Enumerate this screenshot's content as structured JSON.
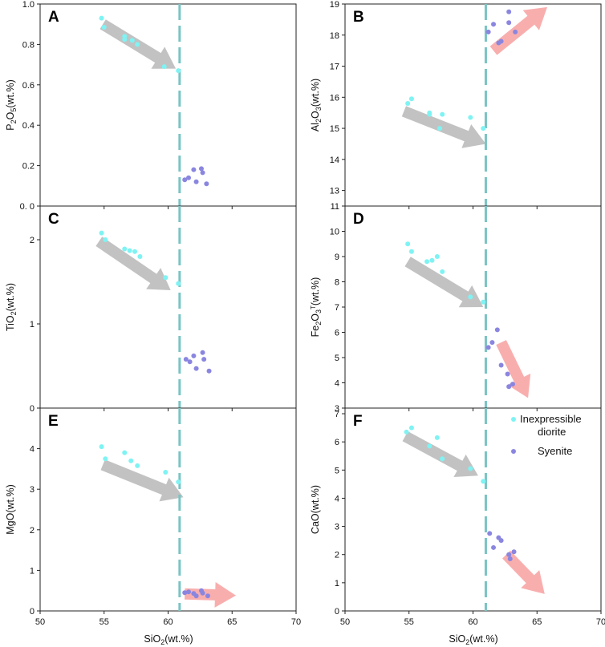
{
  "figure": {
    "xlabel_main": "SiO",
    "xlabel_sub": "2",
    "xlabel_tail": "(wt.%)"
  },
  "legend": {
    "items": [
      {
        "label_line1": "Inexpressible",
        "label_line2": "diorite",
        "color": "#7ff3f3"
      },
      {
        "label_line1": "Syenite",
        "label_line2": "",
        "color": "#8a86e0"
      }
    ]
  },
  "colors": {
    "diorite": "#7ff3f3",
    "diorite_edge": "#33c7c7",
    "syenite": "#8a86e0",
    "syenite_dark": "#5a4fb0",
    "divider": "#7ac4c4",
    "grey_arrow": "#bdbdbd",
    "pink_arrow": "#f8a7a7"
  },
  "chart_data": [
    {
      "panel": "A",
      "type": "scatter",
      "ylabel": [
        {
          "t": "P",
          "s": ""
        },
        {
          "t": "2",
          "s": "sub"
        },
        {
          "t": "O",
          "s": ""
        },
        {
          "t": "5",
          "s": "sub"
        },
        {
          "t": "(wt.%)",
          "s": ""
        }
      ],
      "xlim": [
        50,
        70
      ],
      "ylim": [
        0,
        1.0
      ],
      "xticks": [
        50,
        55,
        60,
        65,
        70
      ],
      "yticks": [
        0,
        0.2,
        0.4,
        0.6,
        0.8,
        1.0
      ],
      "ytick_labels": [
        "0. 0",
        "0.2",
        "0.4",
        "0.6",
        "0.8",
        "1.0"
      ],
      "divider_x": 60.9,
      "series": [
        {
          "name": "Inexpressible diorite",
          "points": [
            [
              54.8,
              0.93
            ],
            [
              55.0,
              0.885
            ],
            [
              56.6,
              0.84
            ],
            [
              56.6,
              0.825
            ],
            [
              57.2,
              0.82
            ],
            [
              57.6,
              0.8
            ],
            [
              59.7,
              0.69
            ],
            [
              60.8,
              0.67
            ]
          ]
        },
        {
          "name": "Syenite",
          "points": [
            [
              61.3,
              0.13
            ],
            [
              61.6,
              0.14
            ],
            [
              62.0,
              0.18
            ],
            [
              62.2,
              0.12
            ],
            [
              62.6,
              0.185
            ],
            [
              62.7,
              0.165
            ],
            [
              63.0,
              0.11
            ]
          ]
        }
      ],
      "arrows": [
        {
          "color": "grey",
          "from": [
            54.9,
            0.9
          ],
          "to": [
            60.6,
            0.68
          ]
        }
      ]
    },
    {
      "panel": "B",
      "type": "scatter",
      "ylabel": [
        {
          "t": "Al",
          "s": ""
        },
        {
          "t": "2",
          "s": "sub"
        },
        {
          "t": "O",
          "s": ""
        },
        {
          "t": "3",
          "s": "sub"
        },
        {
          "t": "(wt.%)",
          "s": ""
        }
      ],
      "xlim": [
        50,
        70
      ],
      "ylim": [
        12.5,
        19
      ],
      "xticks": [
        50,
        55,
        60,
        65,
        70
      ],
      "yticks": [
        13,
        14,
        15,
        16,
        17,
        18,
        19
      ],
      "ytick_labels": [
        "13",
        "14",
        "15",
        "16",
        "17",
        "18",
        "19"
      ],
      "divider_x": 61.0,
      "series": [
        {
          "name": "Inexpressible diorite",
          "points": [
            [
              54.9,
              15.8
            ],
            [
              55.2,
              15.95
            ],
            [
              56.6,
              15.5
            ],
            [
              56.6,
              15.45
            ],
            [
              57.4,
              15.0
            ],
            [
              57.6,
              15.45
            ],
            [
              59.8,
              15.35
            ],
            [
              60.8,
              15.0
            ]
          ]
        },
        {
          "name": "Syenite",
          "points": [
            [
              61.2,
              18.1
            ],
            [
              61.6,
              18.35
            ],
            [
              62.0,
              17.75
            ],
            [
              62.2,
              17.8
            ],
            [
              62.8,
              18.75
            ],
            [
              62.8,
              18.4
            ],
            [
              63.3,
              18.1
            ]
          ]
        }
      ],
      "arrows": [
        {
          "color": "grey",
          "from": [
            54.6,
            15.55
          ],
          "to": [
            61.0,
            14.5
          ]
        },
        {
          "color": "pink",
          "from": [
            61.6,
            17.5
          ],
          "to": [
            65.8,
            18.9
          ]
        }
      ]
    },
    {
      "panel": "C",
      "type": "scatter",
      "ylabel": [
        {
          "t": "TiO",
          "s": ""
        },
        {
          "t": "2",
          "s": "sub"
        },
        {
          "t": "(wt.%)",
          "s": ""
        }
      ],
      "xlim": [
        50,
        70
      ],
      "ylim": [
        0,
        2.4
      ],
      "xticks": [
        50,
        55,
        60,
        65,
        70
      ],
      "yticks": [
        0,
        1,
        2
      ],
      "ytick_labels": [
        "0",
        "1",
        "2"
      ],
      "divider_x": 60.9,
      "series": [
        {
          "name": "Inexpressible diorite",
          "points": [
            [
              54.8,
              2.08
            ],
            [
              55.1,
              2.0
            ],
            [
              56.6,
              1.89
            ],
            [
              57.0,
              1.87
            ],
            [
              57.4,
              1.86
            ],
            [
              57.8,
              1.8
            ],
            [
              59.8,
              1.55
            ],
            [
              60.8,
              1.48
            ]
          ]
        },
        {
          "name": "Syenite",
          "points": [
            [
              61.4,
              0.58
            ],
            [
              61.7,
              0.55
            ],
            [
              62.0,
              0.62
            ],
            [
              62.2,
              0.47
            ],
            [
              62.7,
              0.66
            ],
            [
              62.8,
              0.58
            ],
            [
              63.2,
              0.44
            ]
          ]
        }
      ],
      "arrows": [
        {
          "color": "grey",
          "from": [
            54.6,
            1.98
          ],
          "to": [
            60.2,
            1.4
          ]
        }
      ]
    },
    {
      "panel": "D",
      "type": "scatter",
      "ylabel": [
        {
          "t": "Fe",
          "s": ""
        },
        {
          "t": "2",
          "s": "sub"
        },
        {
          "t": "O",
          "s": ""
        },
        {
          "t": "3",
          "s": "sub"
        },
        {
          "t": "T",
          "s": "sup"
        },
        {
          "t": "(wt.%)",
          "s": ""
        }
      ],
      "xlim": [
        50,
        70
      ],
      "ylim": [
        3,
        11
      ],
      "xticks": [
        50,
        55,
        60,
        65,
        70
      ],
      "yticks": [
        3,
        4,
        5,
        6,
        7,
        8,
        9,
        10,
        11
      ],
      "ytick_labels": [
        "3",
        "4",
        "5",
        "6",
        "7",
        "8",
        "9",
        "10",
        "11"
      ],
      "divider_x": 61.0,
      "series": [
        {
          "name": "Inexpressible diorite",
          "points": [
            [
              54.9,
              9.5
            ],
            [
              55.2,
              9.2
            ],
            [
              56.4,
              8.8
            ],
            [
              56.8,
              8.85
            ],
            [
              57.2,
              9.0
            ],
            [
              57.6,
              8.4
            ],
            [
              59.8,
              7.4
            ],
            [
              60.8,
              7.2
            ]
          ]
        },
        {
          "name": "Syenite",
          "points": [
            [
              61.2,
              5.4
            ],
            [
              61.5,
              5.6
            ],
            [
              61.9,
              6.1
            ],
            [
              62.2,
              4.7
            ],
            [
              62.7,
              4.35
            ],
            [
              62.8,
              3.85
            ],
            [
              63.1,
              3.95
            ]
          ]
        }
      ],
      "arrows": [
        {
          "color": "grey",
          "from": [
            54.9,
            8.8
          ],
          "to": [
            60.8,
            7.0
          ]
        },
        {
          "color": "pink",
          "from": [
            62.2,
            5.6
          ],
          "to": [
            64.3,
            3.4
          ]
        }
      ]
    },
    {
      "panel": "E",
      "type": "scatter",
      "ylabel": [
        {
          "t": "MgO(wt.%)",
          "s": ""
        }
      ],
      "xlim": [
        50,
        70
      ],
      "ylim": [
        0,
        5
      ],
      "xticks": [
        50,
        55,
        60,
        65,
        70
      ],
      "xtick_labels": [
        "50",
        "55",
        "60",
        "65",
        "70"
      ],
      "yticks": [
        0,
        1,
        2,
        3,
        4
      ],
      "ytick_labels": [
        "0",
        "1",
        "2",
        "3",
        "4"
      ],
      "divider_x": 60.9,
      "series": [
        {
          "name": "Inexpressible diorite",
          "points": [
            [
              54.8,
              4.05
            ],
            [
              55.1,
              3.75
            ],
            [
              56.6,
              3.9
            ],
            [
              57.1,
              3.7
            ],
            [
              57.6,
              3.58
            ],
            [
              59.8,
              3.42
            ],
            [
              60.8,
              3.18
            ]
          ]
        },
        {
          "name": "Syenite",
          "points": [
            [
              61.3,
              0.45
            ],
            [
              61.6,
              0.47
            ],
            [
              62.0,
              0.43
            ],
            [
              62.2,
              0.37
            ],
            [
              62.6,
              0.5
            ],
            [
              62.7,
              0.44
            ],
            [
              63.1,
              0.37
            ]
          ]
        }
      ],
      "arrows": [
        {
          "color": "grey",
          "from": [
            54.9,
            3.6
          ],
          "to": [
            61.2,
            2.8
          ]
        },
        {
          "color": "pink",
          "from": [
            61.3,
            0.42
          ],
          "to": [
            65.3,
            0.38
          ]
        }
      ]
    },
    {
      "panel": "F",
      "type": "scatter",
      "ylabel": [
        {
          "t": "CaO(wt.%)",
          "s": ""
        }
      ],
      "xlim": [
        50,
        70
      ],
      "ylim": [
        0,
        7.2
      ],
      "xticks": [
        50,
        55,
        60,
        65,
        70
      ],
      "xtick_labels": [
        "50",
        "55",
        "60",
        "65",
        "70"
      ],
      "yticks": [
        0,
        1,
        2,
        3,
        4,
        5,
        6,
        7
      ],
      "ytick_labels": [
        "0",
        "1",
        "2",
        "3",
        "4",
        "5",
        "6",
        "7"
      ],
      "divider_x": 61.0,
      "series": [
        {
          "name": "Inexpressible diorite",
          "points": [
            [
              54.8,
              6.35
            ],
            [
              55.2,
              6.5
            ],
            [
              56.6,
              5.85
            ],
            [
              57.2,
              6.15
            ],
            [
              57.6,
              5.4
            ],
            [
              59.8,
              5.05
            ],
            [
              60.8,
              4.6
            ]
          ]
        },
        {
          "name": "Syenite",
          "points": [
            [
              61.3,
              2.75
            ],
            [
              61.6,
              2.25
            ],
            [
              62.0,
              2.6
            ],
            [
              62.2,
              2.5
            ],
            [
              62.8,
              2.0
            ],
            [
              62.9,
              1.85
            ],
            [
              63.2,
              2.1
            ]
          ]
        }
      ],
      "arrows": [
        {
          "color": "grey",
          "from": [
            54.7,
            6.2
          ],
          "to": [
            60.4,
            4.8
          ]
        },
        {
          "color": "pink",
          "from": [
            62.6,
            2.0
          ],
          "to": [
            65.6,
            0.6
          ]
        }
      ]
    }
  ]
}
